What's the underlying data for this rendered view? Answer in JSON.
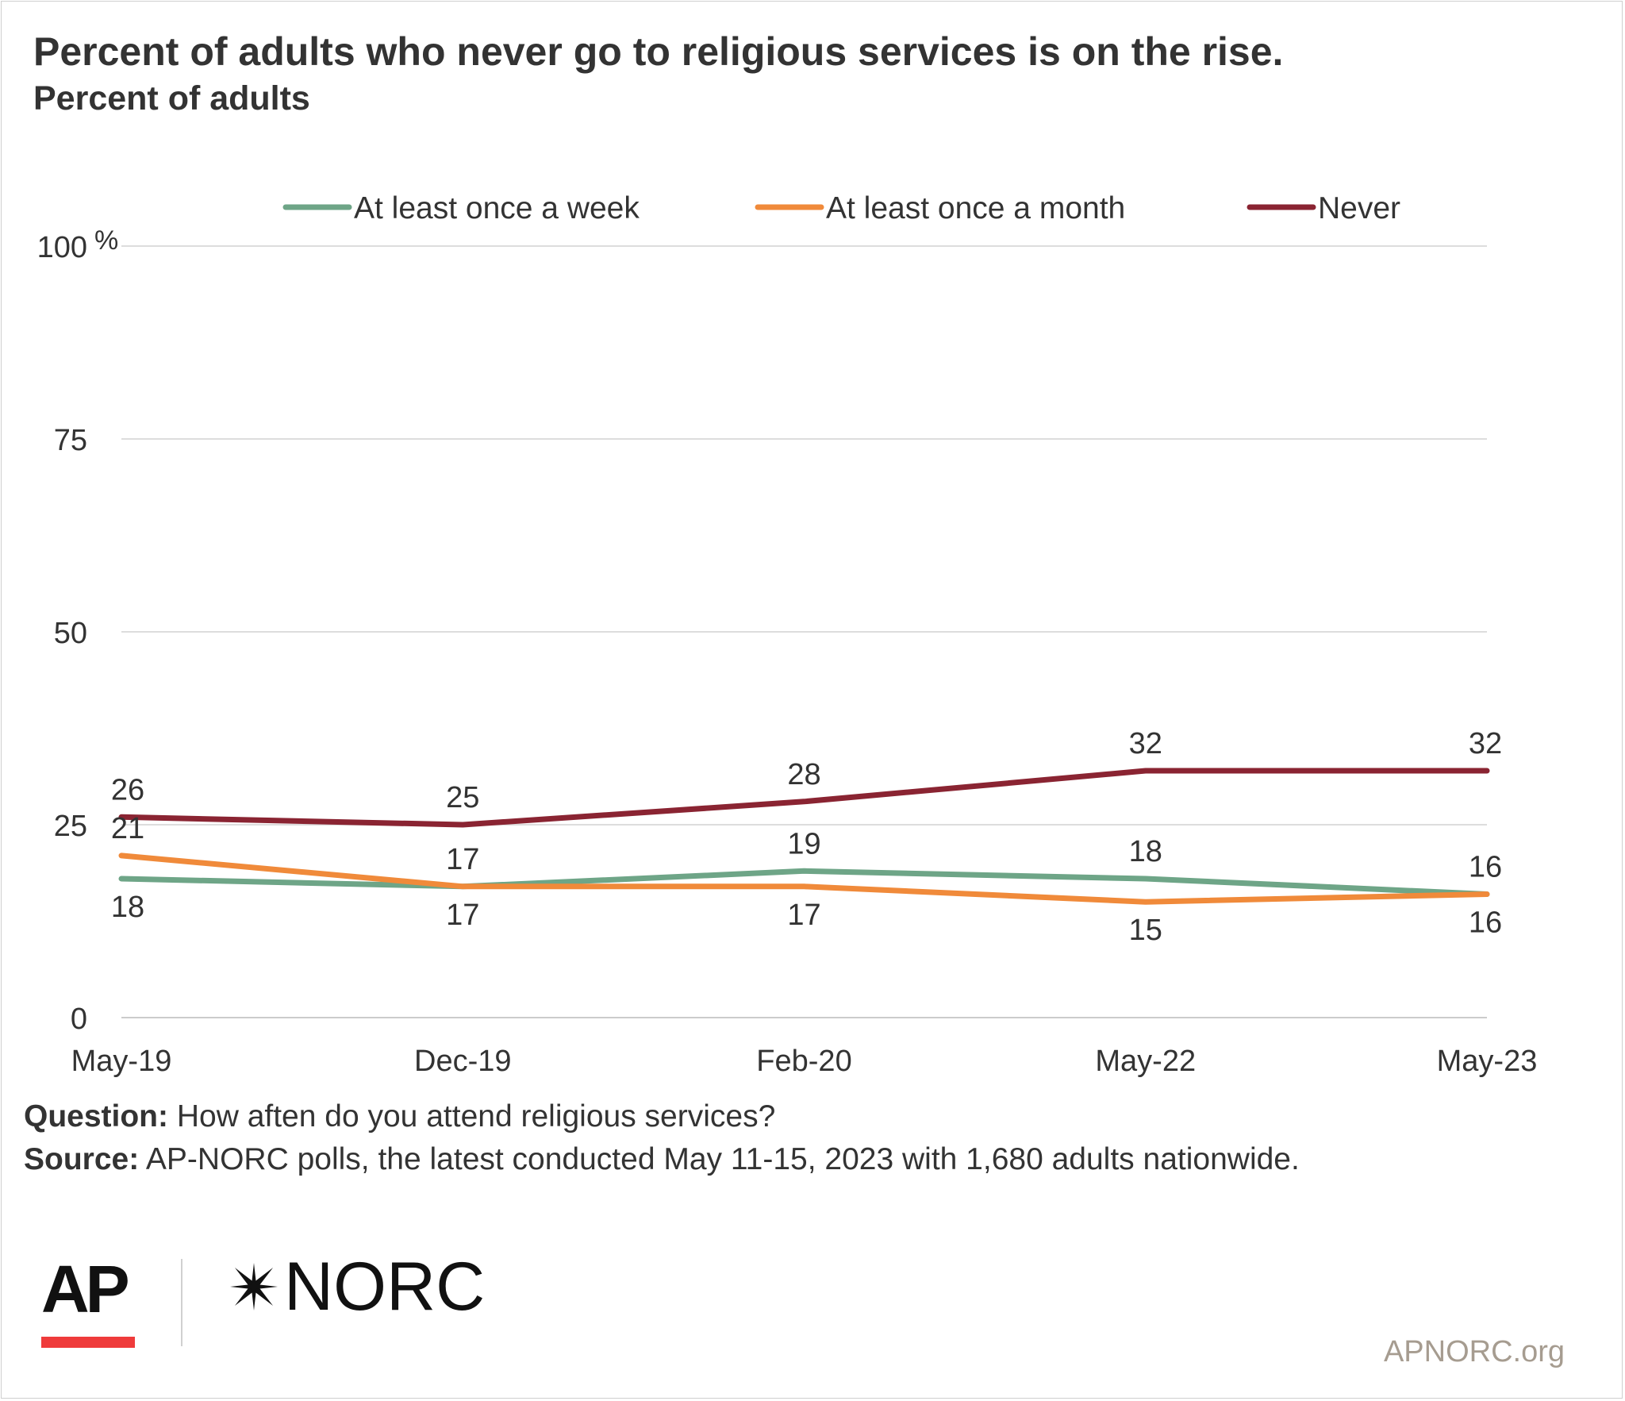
{
  "header": {
    "title": "Percent of adults who never go to religious services is on the rise.",
    "subtitle": "Percent of adults"
  },
  "chart_data": {
    "type": "line",
    "title": "Percent of adults who never go to religious services is on the rise.",
    "subtitle": "Percent of adults",
    "x": [
      "May-19",
      "Dec-19",
      "Feb-20",
      "May-22",
      "May-23"
    ],
    "ylim": [
      0,
      100
    ],
    "yticks": [
      0,
      25,
      50,
      75,
      100
    ],
    "ytick_labels": [
      "0",
      "25",
      "50",
      "75",
      "100"
    ],
    "y_unit": "%",
    "grid": true,
    "legend_position": "top",
    "series": [
      {
        "name": "At least once a week",
        "color": "#6ea587",
        "values": [
          18,
          17,
          19,
          18,
          16
        ],
        "label_side": [
          "below",
          "above",
          "above",
          "above",
          "above"
        ]
      },
      {
        "name": "At least once a month",
        "color": "#f08a3a",
        "values": [
          21,
          17,
          17,
          15,
          16
        ],
        "label_side": [
          "above",
          "below",
          "below",
          "below",
          "below"
        ]
      },
      {
        "name": "Never",
        "color": "#8a2432",
        "values": [
          26,
          25,
          28,
          32,
          32
        ],
        "label_side": [
          "above",
          "above",
          "above",
          "above",
          "above"
        ]
      }
    ]
  },
  "notes": {
    "question_label": "Question:",
    "question_text": "How aften do you attend religious services?",
    "source_label": "Source:",
    "source_text": "AP-NORC polls, the latest conducted May 11-15, 2023 with 1,680 adults nationwide."
  },
  "footer": {
    "ap_logo": "AP",
    "norc_logo": "NORC",
    "site": "APNORC.org"
  }
}
